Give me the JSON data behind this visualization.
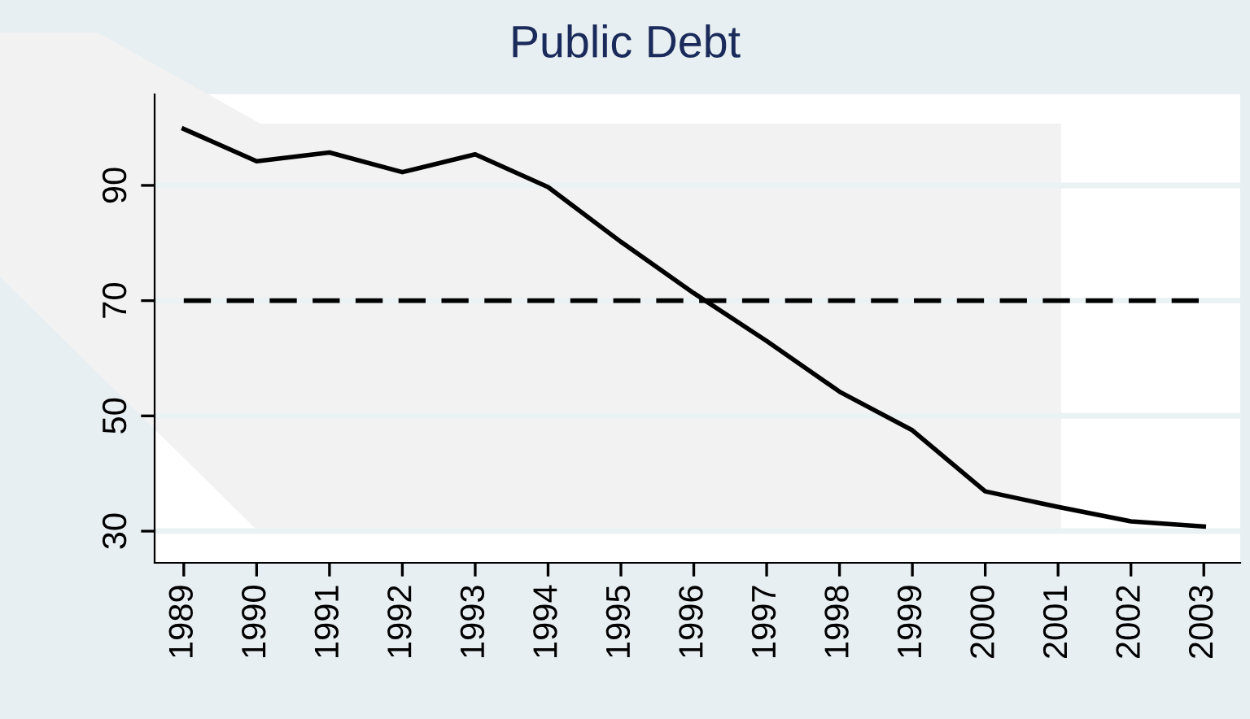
{
  "chart_data": {
    "type": "line",
    "title": "Public Debt",
    "x": [
      1989,
      1990,
      1991,
      1992,
      1993,
      1994,
      1995,
      1996,
      1997,
      1998,
      1999,
      2000,
      2001,
      2002,
      2003
    ],
    "series": [
      {
        "color": "#000000",
        "values": [
          99.8,
          94.2,
          95.7,
          92.3,
          95.4,
          89.7,
          80.2,
          71.3,
          63.0,
          54.2,
          47.5,
          36.9,
          34.2,
          31.7,
          30.8
        ]
      }
    ],
    "xlim": [
      1988.6,
      2003.5
    ],
    "xticks": [
      1989,
      1990,
      1991,
      1992,
      1993,
      1994,
      1995,
      1996,
      1997,
      1998,
      1999,
      2000,
      2001,
      2002,
      2003
    ],
    "ylim": [
      24.5,
      105.8
    ],
    "yticks": [
      30,
      50,
      70,
      90
    ],
    "ref_lines": [
      {
        "axis": "y",
        "value": 70,
        "color": "#000000",
        "line_style": "dashed"
      }
    ],
    "grid": "y",
    "marker": "none",
    "line_style": "solid"
  }
}
